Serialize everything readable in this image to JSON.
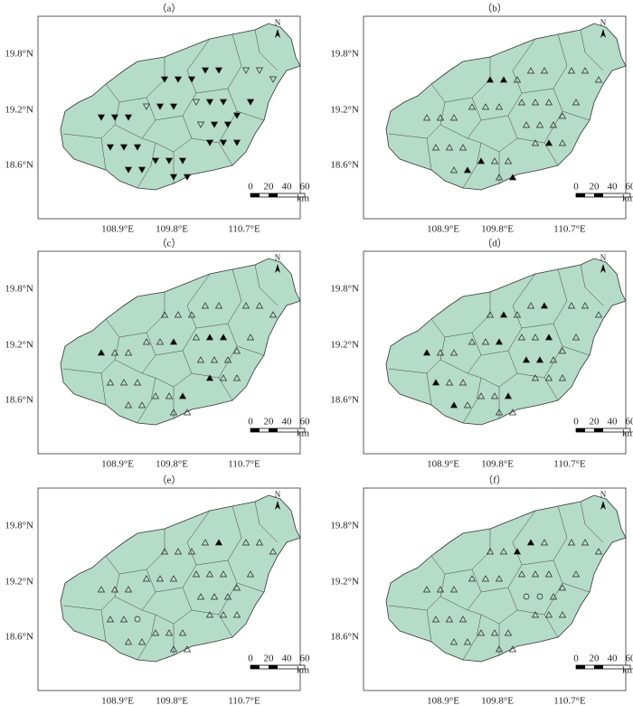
{
  "panels": [
    {
      "label": "（a）"
    },
    {
      "label": "（b）"
    },
    {
      "label": "（c）"
    },
    {
      "label": "（d）"
    },
    {
      "label": "（e）"
    },
    {
      "label": "（f）"
    }
  ],
  "y_labels": [
    "19.8°N",
    "19.2°N",
    "18.6°N"
  ],
  "x_labels": [
    "108.9°E",
    "109.8°E",
    "110.7°E"
  ],
  "scale_bar": {
    "ticks": [
      "0",
      "20",
      "40",
      "60"
    ],
    "unit": "km"
  },
  "north": "N"
}
